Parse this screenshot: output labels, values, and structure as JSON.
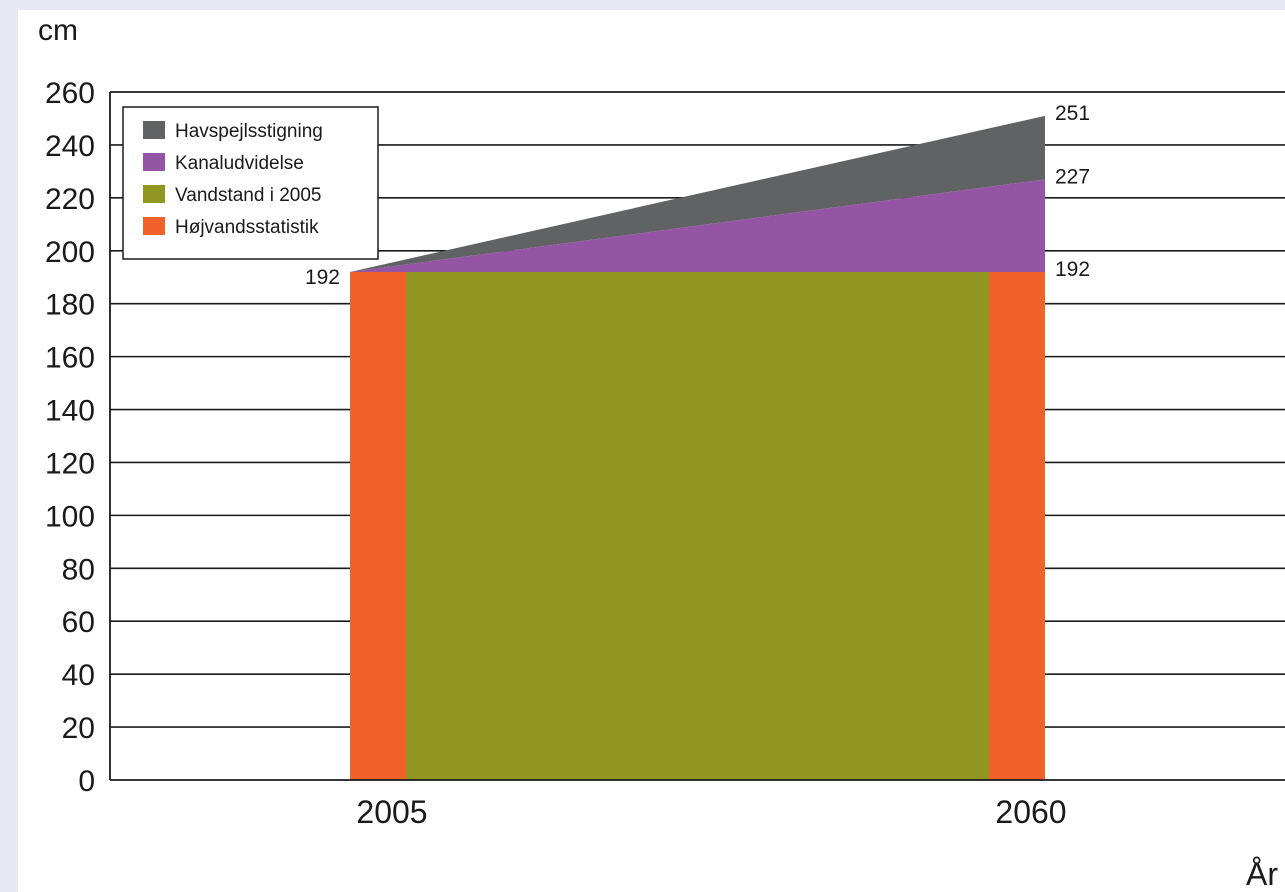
{
  "chart_data": {
    "type": "area",
    "ylabel": "cm",
    "xlabel": "År",
    "ylim": [
      0,
      260
    ],
    "yticks": [
      0,
      20,
      40,
      60,
      80,
      100,
      120,
      140,
      160,
      180,
      200,
      220,
      240,
      260
    ],
    "x": [
      "2005",
      "2060"
    ],
    "grid": true,
    "legend_position": "top-left",
    "series": [
      {
        "name": "Havspejlsstigning",
        "color": "#616264",
        "values": [
          192,
          251
        ]
      },
      {
        "name": "Kanaludvidelse",
        "color": "#9456a4",
        "values": [
          192,
          227
        ]
      },
      {
        "name": "Vandstand i 2005",
        "color": "#909620",
        "values": [
          192,
          192
        ]
      },
      {
        "name": "Højvandsstatistik",
        "color": "#f0622a",
        "values": [
          192,
          192
        ]
      }
    ],
    "data_labels": [
      {
        "x": "2005",
        "text": "192",
        "value": 192
      },
      {
        "x": "2060",
        "text": "192",
        "value": 192
      },
      {
        "x": "2060",
        "text": "227",
        "value": 227
      },
      {
        "x": "2060",
        "text": "251",
        "value": 251
      }
    ]
  }
}
